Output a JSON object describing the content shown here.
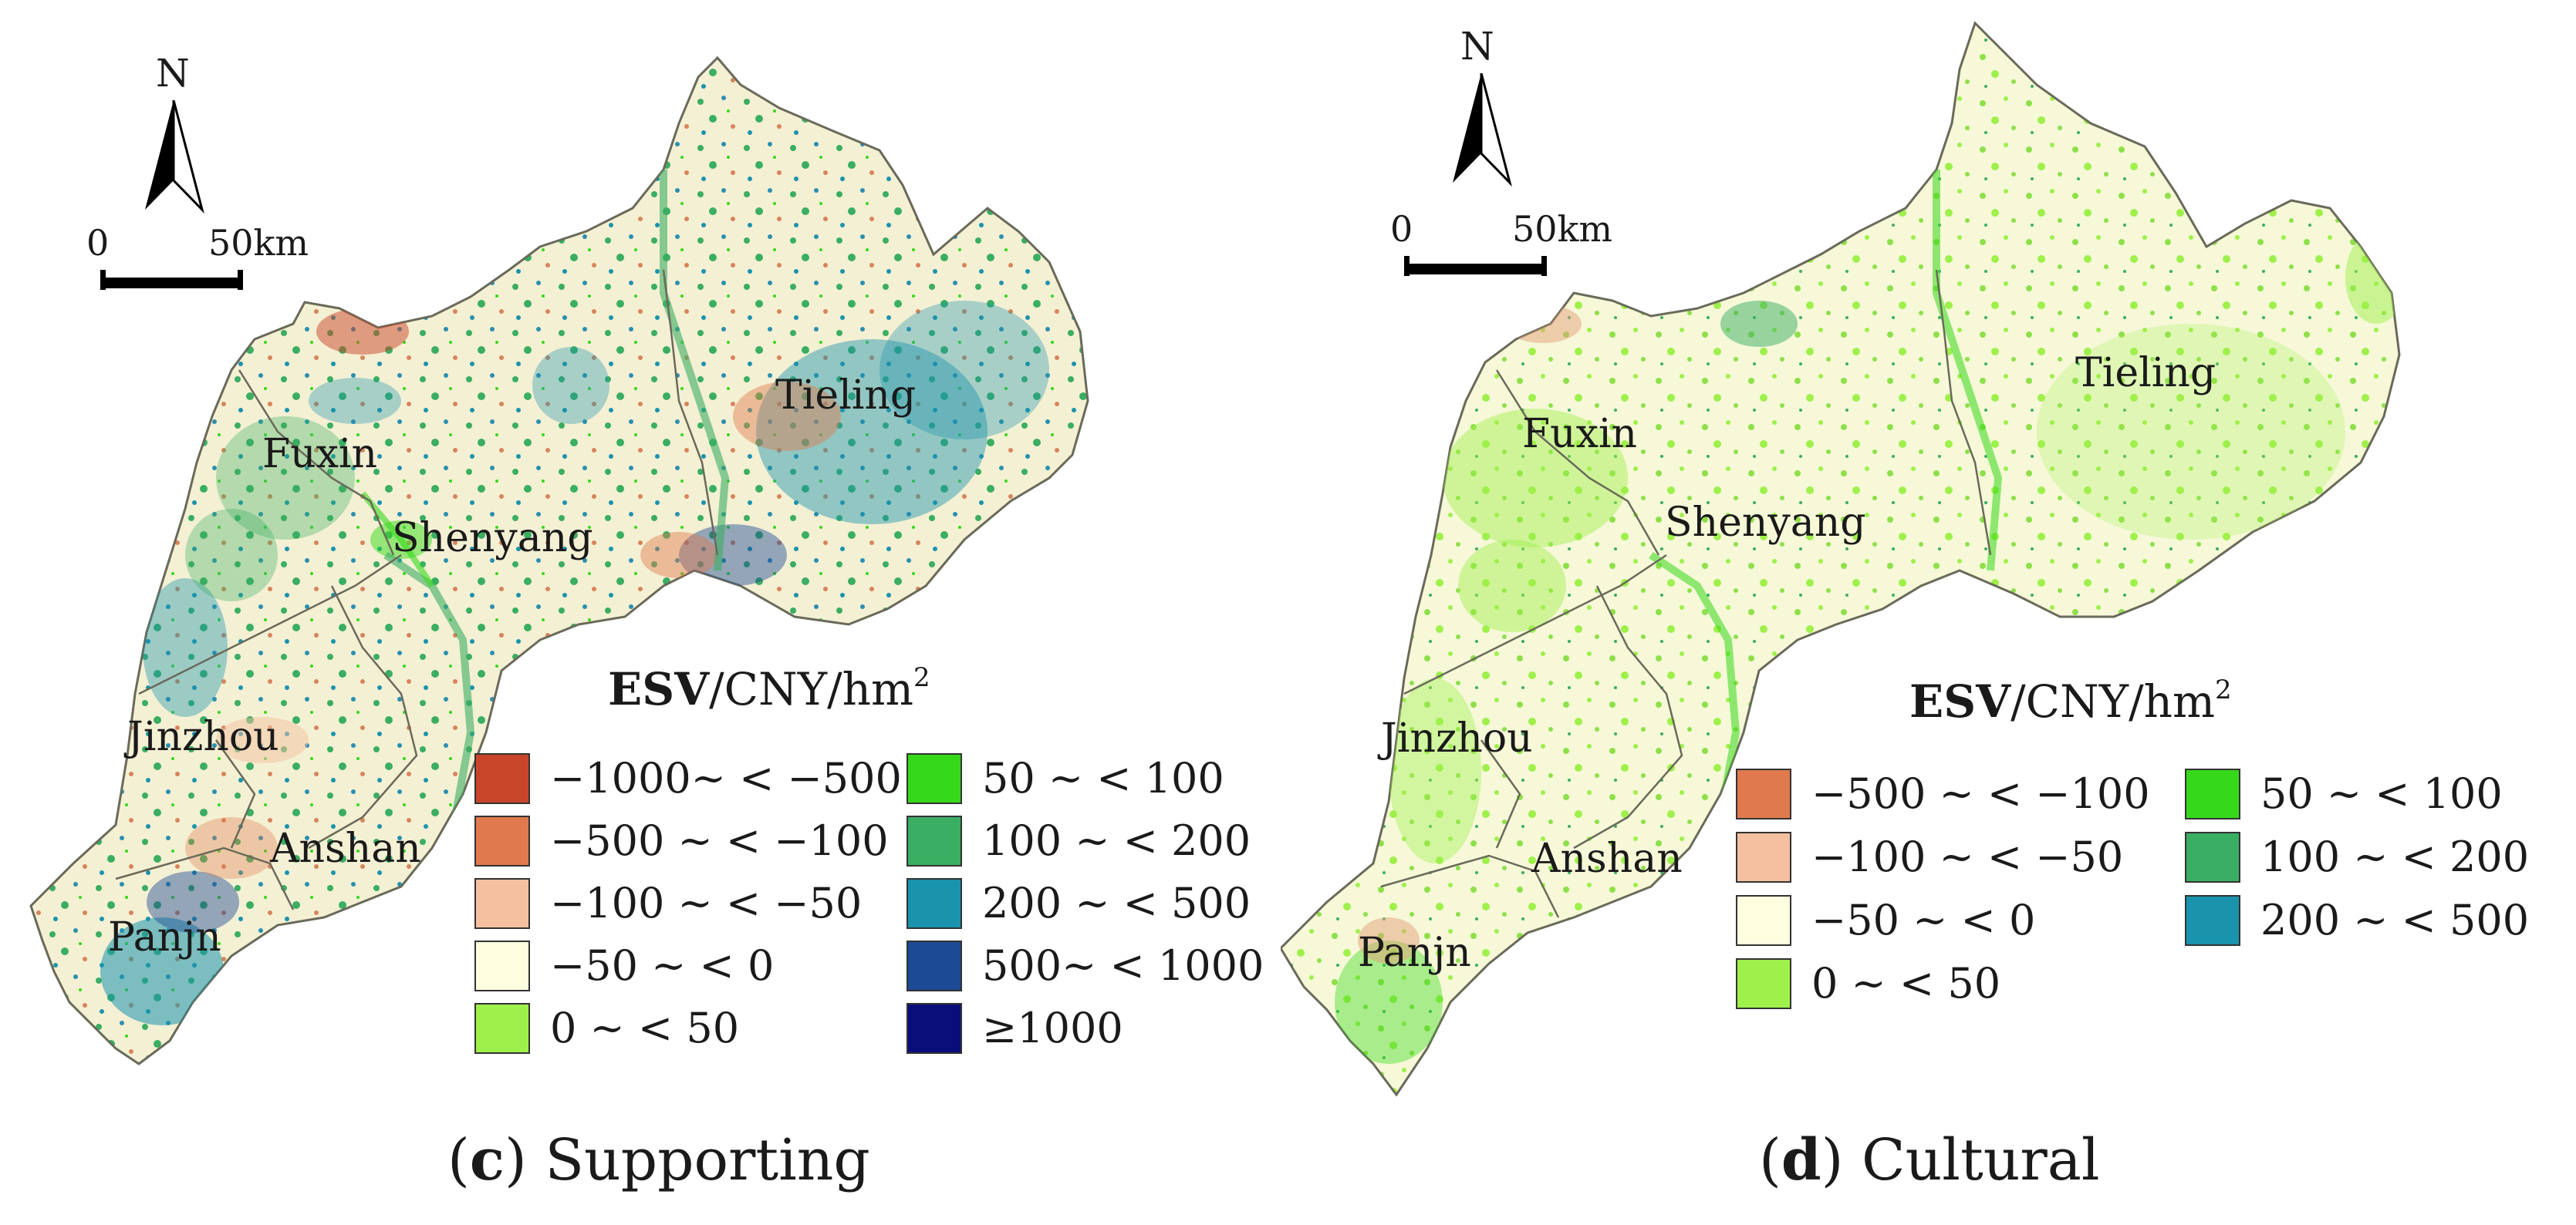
{
  "panels": [
    {
      "id": "c",
      "caption": {
        "letter": "c",
        "name": "Supporting"
      },
      "north_label": "N",
      "scale": {
        "start": "0",
        "end": "50km"
      },
      "legend": {
        "title_bold": "ESV",
        "title_rest": "/CNY/hm",
        "title_sup": "2",
        "items": [
          {
            "label": "−1000~ < −500",
            "color": "#c9452a"
          },
          {
            "label": "−500 ~ < −100",
            "color": "#e07a4e"
          },
          {
            "label": "−100 ~ < −50",
            "color": "#f4c0a0"
          },
          {
            "label": "−50 ~ < 0",
            "color": "#fdfde0"
          },
          {
            "label": "0 ~ < 50",
            "color": "#9ef04a"
          },
          {
            "label": "50 ~ < 100",
            "color": "#36d91a"
          },
          {
            "label": "100 ~ < 200",
            "color": "#3aae62"
          },
          {
            "label": "200 ~ < 500",
            "color": "#1a93ad"
          },
          {
            "label": "500~ < 1000",
            "color": "#1d4a95"
          },
          {
            "label": "≥1000",
            "color": "#0a0e7a"
          }
        ]
      },
      "cities": [
        "Tieling",
        "Fuxin",
        "Shenyang",
        "Jinzhou",
        "Anshan",
        "Panjn"
      ],
      "colors": {
        "base": "#f4f0d4",
        "outline": "#6a6a5a",
        "speckle_a": "#3aae62",
        "speckle_b": "#2a8fb0",
        "speckle_c": "#d8845a"
      }
    },
    {
      "id": "d",
      "caption": {
        "letter": "d",
        "name": "Cultural"
      },
      "north_label": "N",
      "scale": {
        "start": "0",
        "end": "50km"
      },
      "legend": {
        "title_bold": "ESV",
        "title_rest": "/CNY/hm",
        "title_sup": "2",
        "items": [
          {
            "label": "−500 ~ < −100",
            "color": "#e07a4e"
          },
          {
            "label": "−100 ~ < −50",
            "color": "#f4c0a0"
          },
          {
            "label": "−50 ~ < 0",
            "color": "#fdfde0"
          },
          {
            "label": "0 ~ < 50",
            "color": "#9ef04a"
          },
          {
            "label": "50 ~ < 100",
            "color": "#36d91a"
          },
          {
            "label": "100 ~ < 200",
            "color": "#3aae62"
          },
          {
            "label": "200 ~ < 500",
            "color": "#1a93ad"
          }
        ]
      },
      "cities": [
        "Tieling",
        "Fuxin",
        "Shenyang",
        "Jinzhou",
        "Anshan",
        "Panjn"
      ],
      "colors": {
        "base": "#f6f8d8",
        "outline": "#6a6a5a",
        "speckle_a": "#8ee04a",
        "speckle_b": "#3aae62",
        "speckle_c": "#e3a07a"
      }
    }
  ]
}
